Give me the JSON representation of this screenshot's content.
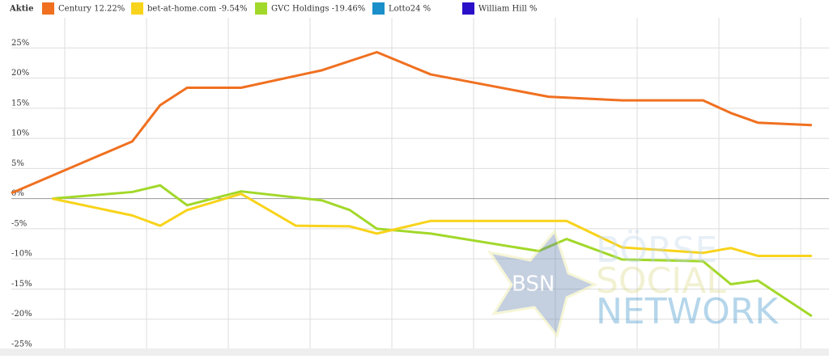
{
  "chart_data": {
    "type": "line",
    "legend_title": "Aktie",
    "watermark_badge": "BSN",
    "watermark": [
      "BÖRSE",
      "SOCIAL",
      "NETWORK"
    ],
    "xlim": [
      0,
      100
    ],
    "ylim": [
      -25,
      30
    ],
    "yticks": [
      {
        "value": 25,
        "label": "25%"
      },
      {
        "value": 20,
        "label": "20%"
      },
      {
        "value": 15,
        "label": "15%"
      },
      {
        "value": 10,
        "label": "10%"
      },
      {
        "value": 5,
        "label": "5%"
      },
      {
        "value": 0,
        "label": "0%"
      },
      {
        "value": -5,
        "label": "-5%"
      },
      {
        "value": -10,
        "label": "-10%"
      },
      {
        "value": -15,
        "label": "-15%"
      },
      {
        "value": -20,
        "label": "-20%"
      },
      {
        "value": -25,
        "label": "-25%"
      }
    ],
    "grid": true,
    "series": [
      {
        "name": "Century  12.22%",
        "color": "#f07020",
        "x": [
          0,
          14.8,
          18.2,
          21.5,
          28.1,
          38,
          44.7,
          51.3,
          65.7,
          74.7,
          84.6,
          88,
          91.3,
          97.9
        ],
        "values": [
          0.9,
          9.5,
          15.5,
          18.4,
          18.4,
          21.3,
          24.3,
          20.6,
          16.9,
          16.3,
          16.3,
          14.2,
          12.6,
          12.2
        ]
      },
      {
        "name": "bet-at-home.com  -9.54%",
        "color": "#f8d31b",
        "x": [
          5,
          14.8,
          18.2,
          21.5,
          28.1,
          34.8,
          41.4,
          44.7,
          51.3,
          67.9,
          74.7,
          84.6,
          88,
          91.3,
          97.9
        ],
        "values": [
          0,
          -2.8,
          -4.5,
          -1.9,
          0.8,
          -4.5,
          -4.6,
          -5.8,
          -3.7,
          -3.7,
          -8.1,
          -9.0,
          -8.2,
          -9.5,
          -9.5
        ]
      },
      {
        "name": "GVC Holdings  -19.46%",
        "color": "#a2d82a",
        "x": [
          5,
          14.8,
          18.2,
          21.5,
          28.1,
          38,
          41.4,
          44.7,
          51.3,
          64.5,
          67.9,
          74.7,
          84.6,
          88,
          91.3,
          97.9
        ],
        "values": [
          0,
          1.1,
          2.2,
          -1.1,
          1.2,
          -0.3,
          -1.9,
          -5.0,
          -5.8,
          -8.7,
          -6.7,
          -10.1,
          -10.4,
          -14.2,
          -13.6,
          -19.5
        ]
      },
      {
        "name": "Lotto24  %",
        "color": "#1a8fc9",
        "x": [],
        "values": []
      },
      {
        "name": "William Hill  %",
        "color": "#2a10c8",
        "x": [],
        "values": []
      }
    ]
  }
}
